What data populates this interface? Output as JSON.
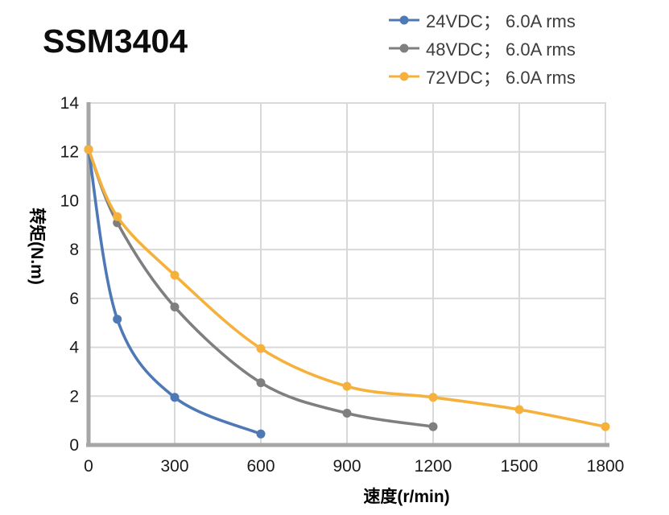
{
  "header": {
    "title": "SSM3404"
  },
  "colors": {
    "background": "#ffffff",
    "gridline": "#d9d9d9",
    "axis_spine": "#a6a6a6",
    "tick_text": "#1a1a1a",
    "legend_text": "#3d3d3d",
    "series_blue": "#4e79b5",
    "series_gray": "#7f7f7f",
    "series_orange": "#f5b13c"
  },
  "chart_data": {
    "type": "line",
    "title": "SSM3404",
    "xlabel": "速度(r/min)",
    "ylabel": "转矩(N.m)",
    "xlim": [
      0,
      1800
    ],
    "ylim": [
      0,
      14
    ],
    "x_ticks": [
      0,
      300,
      600,
      900,
      1200,
      1500,
      1800
    ],
    "y_ticks": [
      0,
      2,
      4,
      6,
      8,
      10,
      12,
      14
    ],
    "grid": true,
    "smooth": true,
    "legend_position": "top-right",
    "series": [
      {
        "label": "24VDC； 6.0A rms",
        "color": "#4e79b5",
        "points": [
          [
            0,
            12.1
          ],
          [
            100,
            5.15
          ],
          [
            300,
            1.95
          ],
          [
            600,
            0.45
          ]
        ]
      },
      {
        "label": "48VDC； 6.0A rms",
        "color": "#7f7f7f",
        "points": [
          [
            0,
            12.1
          ],
          [
            100,
            9.1
          ],
          [
            300,
            5.65
          ],
          [
            600,
            2.55
          ],
          [
            900,
            1.3
          ],
          [
            1200,
            0.75
          ]
        ]
      },
      {
        "label": "72VDC； 6.0A rms",
        "color": "#f5b13c",
        "points": [
          [
            0,
            12.1
          ],
          [
            100,
            9.35
          ],
          [
            300,
            6.95
          ],
          [
            600,
            3.95
          ],
          [
            900,
            2.4
          ],
          [
            1200,
            1.95
          ],
          [
            1500,
            1.45
          ],
          [
            1800,
            0.75
          ]
        ]
      }
    ]
  }
}
